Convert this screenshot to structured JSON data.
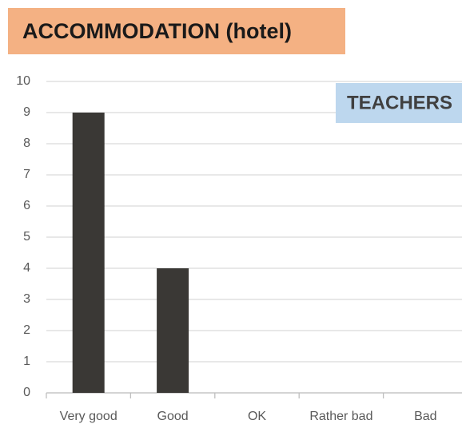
{
  "chart_data": {
    "type": "bar",
    "title": "ACCOMMODATION (hotel)",
    "annotation": "TEACHERS",
    "categories": [
      "Very good",
      "Good",
      "OK",
      "Rather bad",
      "Bad"
    ],
    "values": [
      9,
      4,
      0,
      0,
      0
    ],
    "color": "#3a3835",
    "ylim": [
      0,
      10
    ],
    "yticks": [
      0,
      1,
      2,
      3,
      4,
      5,
      6,
      7,
      8,
      9,
      10
    ],
    "grid": true
  }
}
